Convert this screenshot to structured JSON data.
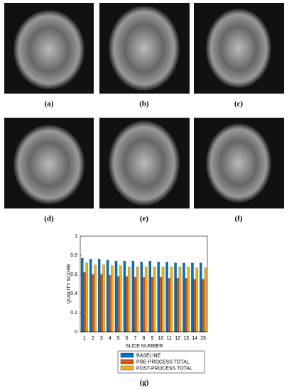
{
  "panels": [
    {
      "label": "(a)"
    },
    {
      "label": "(b)"
    },
    {
      "label": "(c)"
    },
    {
      "label": "(d)"
    },
    {
      "label": "(e)"
    },
    {
      "label": "(f)"
    }
  ],
  "chart_data": {
    "type": "bar",
    "x_label": "SLICE NUMBER",
    "y_label": "QUALITY SCORE",
    "caption": "(g)",
    "categories": [
      "1",
      "2",
      "3",
      "4",
      "5",
      "6",
      "7",
      "8",
      "9",
      "10",
      "11",
      "12",
      "13",
      "14",
      "15"
    ],
    "series": [
      {
        "name": "BASELINE",
        "color": "#0072bd",
        "values": [
          0.77,
          0.76,
          0.76,
          0.75,
          0.74,
          0.74,
          0.74,
          0.73,
          0.74,
          0.73,
          0.73,
          0.72,
          0.72,
          0.72,
          0.72
        ]
      },
      {
        "name": "PRE-PROCESS TOTAL",
        "color": "#d95319",
        "values": [
          0.62,
          0.6,
          0.6,
          0.59,
          0.58,
          0.58,
          0.57,
          0.57,
          0.57,
          0.57,
          0.56,
          0.56,
          0.56,
          0.55,
          0.55
        ]
      },
      {
        "name": "POST-PROCESS TOTAL",
        "color": "#edb120",
        "values": [
          0.72,
          0.7,
          0.7,
          0.69,
          0.69,
          0.68,
          0.68,
          0.68,
          0.68,
          0.68,
          0.68,
          0.68,
          0.68,
          0.67,
          0.67
        ]
      }
    ],
    "ylim": [
      0,
      1
    ],
    "yticks": [
      0,
      0.2,
      0.4,
      0.6,
      0.8,
      1
    ],
    "legend": "bottom"
  }
}
